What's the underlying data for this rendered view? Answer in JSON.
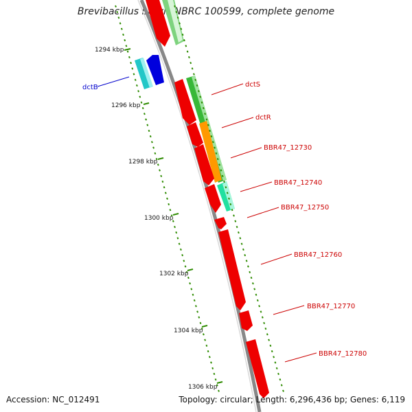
{
  "title": "Brevibacillus brevis NBRC 100599, complete genome",
  "footer": {
    "accession": "Accession: NC_012491",
    "summary": "Topology: circular; Length: 6,296,436 bp; Genes: 6,119"
  },
  "colors": {
    "backbone": "#808080",
    "tick": "#2e8b00",
    "label_red": "#cc0000",
    "label_blue": "#0000cc"
  },
  "scale_labels": [
    "1294 kbp",
    "1296 kbp",
    "1298 kbp",
    "1300 kbp",
    "1302 kbp",
    "1304 kbp",
    "1306 kbp"
  ],
  "gene_labels": [
    {
      "text": "dctB",
      "color": "blue"
    },
    {
      "text": "dctS",
      "color": "red"
    },
    {
      "text": "dctR",
      "color": "red"
    },
    {
      "text": "BBR47_12730",
      "color": "red"
    },
    {
      "text": "BBR47_12740",
      "color": "red"
    },
    {
      "text": "BBR47_12750",
      "color": "red"
    },
    {
      "text": "BBR47_12760",
      "color": "red"
    },
    {
      "text": "BBR47_12770",
      "color": "red"
    },
    {
      "text": "BBR47_12780",
      "color": "red"
    }
  ]
}
